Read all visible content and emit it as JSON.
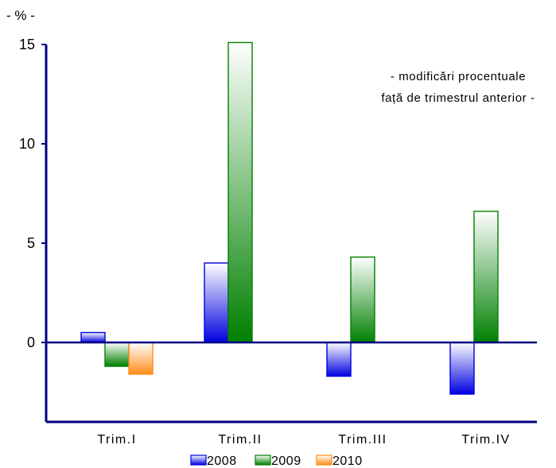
{
  "chart_data": {
    "type": "bar",
    "unit_label": "- % -",
    "note_lines": [
      "- modificări procentuale",
      "față de trimestrul anterior -"
    ],
    "categories": [
      "Trim.I",
      "Trim.II",
      "Trim.III",
      "Trim.IV"
    ],
    "series": [
      {
        "name": "2008",
        "values": [
          0.5,
          4.0,
          -1.7,
          -2.6
        ],
        "color": "#0000e0"
      },
      {
        "name": "2009",
        "values": [
          -1.2,
          15.1,
          4.3,
          6.6
        ],
        "color": "#008000"
      },
      {
        "name": "2010",
        "values": [
          -1.6,
          null,
          null,
          null
        ],
        "color": "#ff8c1a"
      }
    ],
    "yticks": [
      0,
      5,
      10,
      15
    ],
    "ylim": [
      -4,
      15.2
    ],
    "grid": false,
    "legend_position": "bottom-center"
  }
}
